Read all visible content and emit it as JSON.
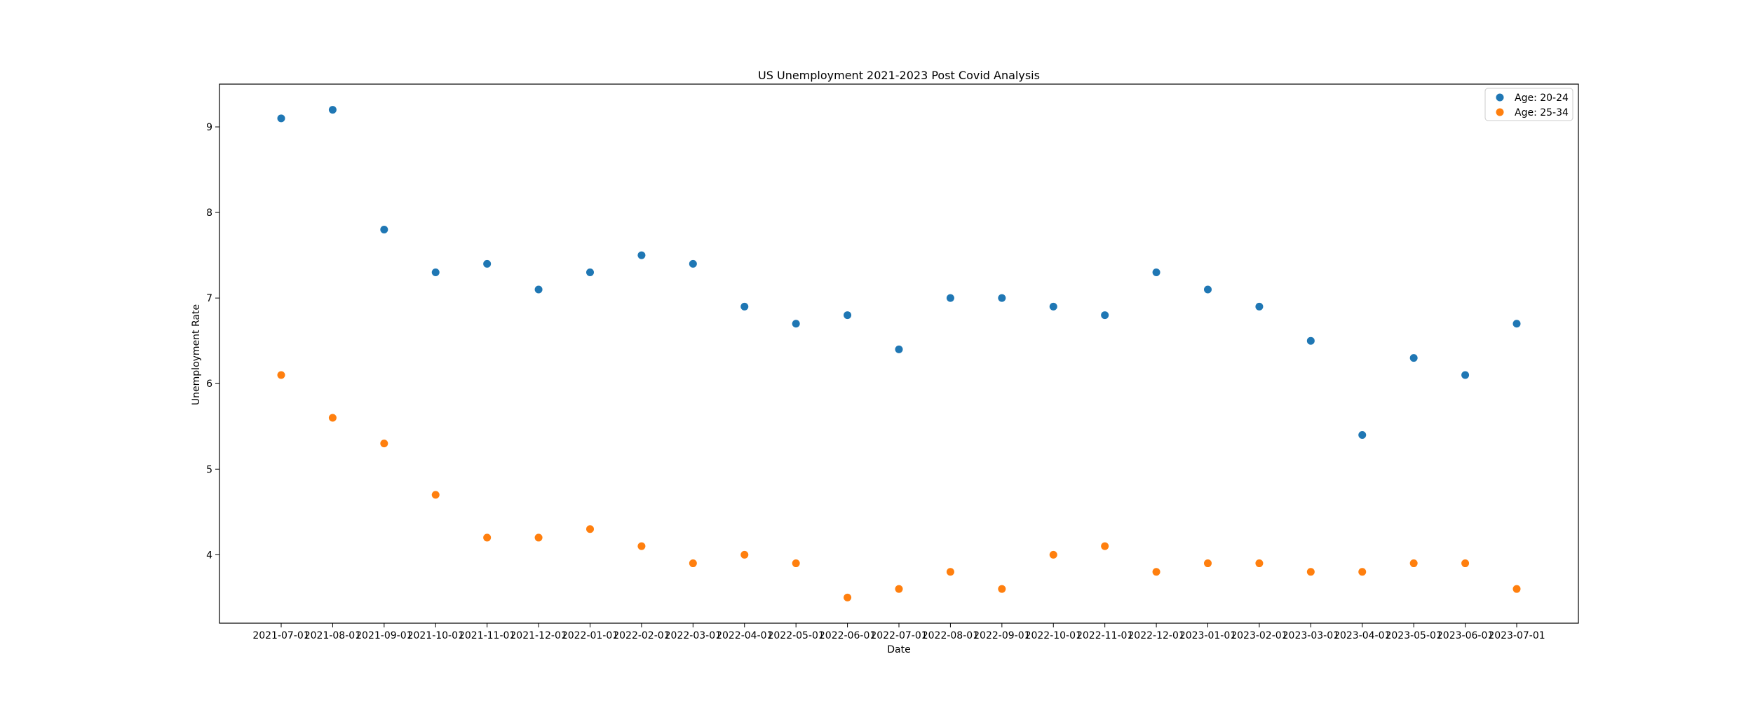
{
  "chart_data": {
    "type": "scatter",
    "title": "US Unemployment 2021-2023 Post Covid Analysis",
    "xlabel": "Date",
    "ylabel": "Unemployment Rate",
    "ylim": [
      3.2,
      9.5
    ],
    "yticks": [
      4,
      5,
      6,
      7,
      8,
      9
    ],
    "grid": false,
    "legend_position": "top-right",
    "x": [
      "2021-07-01",
      "2021-08-01",
      "2021-09-01",
      "2021-10-01",
      "2021-11-01",
      "2021-12-01",
      "2022-01-01",
      "2022-02-01",
      "2022-03-01",
      "2022-04-01",
      "2022-05-01",
      "2022-06-01",
      "2022-07-01",
      "2022-08-01",
      "2022-09-01",
      "2022-10-01",
      "2022-11-01",
      "2022-12-01",
      "2023-01-01",
      "2023-02-01",
      "2023-03-01",
      "2023-04-01",
      "2023-05-01",
      "2023-06-01",
      "2023-07-01"
    ],
    "series": [
      {
        "name": "Age: 20-24",
        "color": "#1f77b4",
        "values": [
          9.1,
          9.2,
          7.8,
          7.3,
          7.4,
          7.1,
          7.3,
          7.5,
          7.4,
          6.9,
          6.7,
          6.8,
          6.4,
          7.0,
          7.0,
          6.9,
          6.8,
          7.3,
          7.1,
          6.9,
          6.5,
          5.4,
          6.3,
          6.1,
          6.7
        ]
      },
      {
        "name": "Age: 25-34",
        "color": "#ff7f0e",
        "values": [
          6.1,
          5.6,
          5.3,
          4.7,
          4.2,
          4.2,
          4.3,
          4.1,
          3.9,
          4.0,
          3.9,
          3.5,
          3.6,
          3.8,
          3.6,
          4.0,
          4.1,
          3.8,
          3.9,
          3.9,
          3.8,
          3.8,
          3.9,
          3.9,
          3.6
        ]
      }
    ]
  }
}
